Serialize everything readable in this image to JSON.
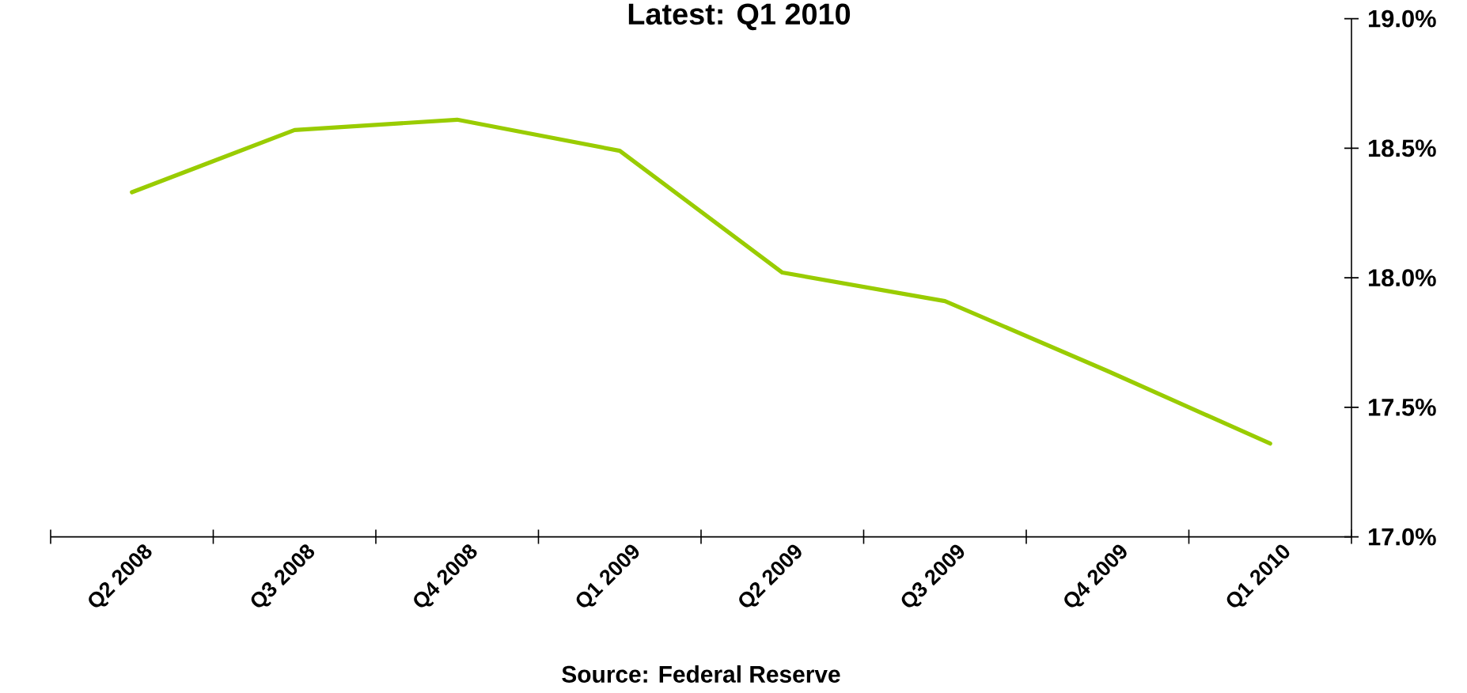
{
  "chart_data": {
    "type": "line",
    "title": "Latest: Q1 2010",
    "categories": [
      "Q2 2008",
      "Q3 2008",
      "Q4 2008",
      "Q1 2009",
      "Q2 2009",
      "Q3 2009",
      "Q4 2009",
      "Q1 2010"
    ],
    "series": [
      {
        "color": "#99cc00",
        "values": [
          18.33,
          18.57,
          18.61,
          18.49,
          18.02,
          17.91,
          17.64,
          17.36
        ]
      }
    ],
    "ylim": [
      17.0,
      19.0
    ],
    "yticks": [
      {
        "value": 17.0,
        "label": "17.0%"
      },
      {
        "value": 17.5,
        "label": "17.5%"
      },
      {
        "value": 18.0,
        "label": "18.0%"
      },
      {
        "value": 18.5,
        "label": "18.5%"
      },
      {
        "value": 19.0,
        "label": "19.0%"
      }
    ],
    "annotations": [
      "Source:  Federal Reserve"
    ],
    "marker": "none",
    "line_style": "solid"
  }
}
